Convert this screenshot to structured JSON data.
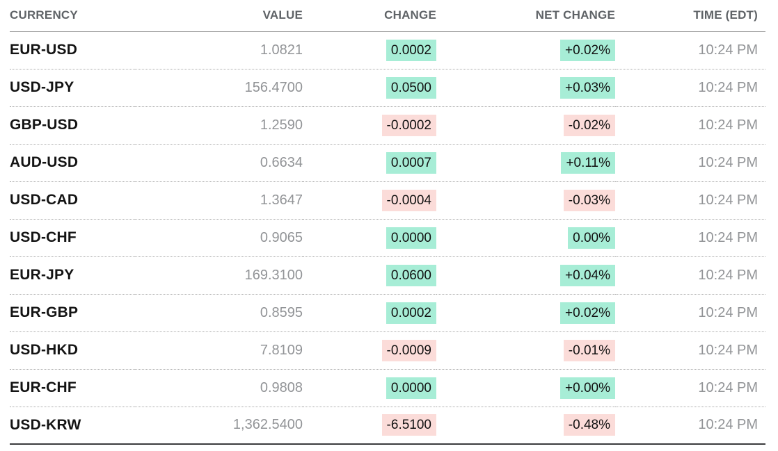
{
  "colors": {
    "positive_bg": "#a7edd6",
    "negative_bg": "#fbdcd9",
    "header_text": "#5f6367",
    "pair_text": "#141414",
    "muted_text": "#929497"
  },
  "table": {
    "headers": {
      "currency": "CURRENCY",
      "value": "VALUE",
      "change": "CHANGE",
      "net_change": "NET CHANGE",
      "time": "TIME (EDT)"
    },
    "rows": [
      {
        "pair": "EUR-USD",
        "value": "1.0821",
        "change": "0.0002",
        "net_change": "+0.02%",
        "time": "10:24 PM",
        "tone": "up"
      },
      {
        "pair": "USD-JPY",
        "value": "156.4700",
        "change": "0.0500",
        "net_change": "+0.03%",
        "time": "10:24 PM",
        "tone": "up"
      },
      {
        "pair": "GBP-USD",
        "value": "1.2590",
        "change": "-0.0002",
        "net_change": "-0.02%",
        "time": "10:24 PM",
        "tone": "down"
      },
      {
        "pair": "AUD-USD",
        "value": "0.6634",
        "change": "0.0007",
        "net_change": "+0.11%",
        "time": "10:24 PM",
        "tone": "up"
      },
      {
        "pair": "USD-CAD",
        "value": "1.3647",
        "change": "-0.0004",
        "net_change": "-0.03%",
        "time": "10:24 PM",
        "tone": "down"
      },
      {
        "pair": "USD-CHF",
        "value": "0.9065",
        "change": "0.0000",
        "net_change": "0.00%",
        "time": "10:24 PM",
        "tone": "up"
      },
      {
        "pair": "EUR-JPY",
        "value": "169.3100",
        "change": "0.0600",
        "net_change": "+0.04%",
        "time": "10:24 PM",
        "tone": "up"
      },
      {
        "pair": "EUR-GBP",
        "value": "0.8595",
        "change": "0.0002",
        "net_change": "+0.02%",
        "time": "10:24 PM",
        "tone": "up"
      },
      {
        "pair": "USD-HKD",
        "value": "7.8109",
        "change": "-0.0009",
        "net_change": "-0.01%",
        "time": "10:24 PM",
        "tone": "down"
      },
      {
        "pair": "EUR-CHF",
        "value": "0.9808",
        "change": "0.0000",
        "net_change": "+0.00%",
        "time": "10:24 PM",
        "tone": "up"
      },
      {
        "pair": "USD-KRW",
        "value": "1,362.5400",
        "change": "-6.5100",
        "net_change": "-0.48%",
        "time": "10:24 PM",
        "tone": "down"
      }
    ]
  }
}
